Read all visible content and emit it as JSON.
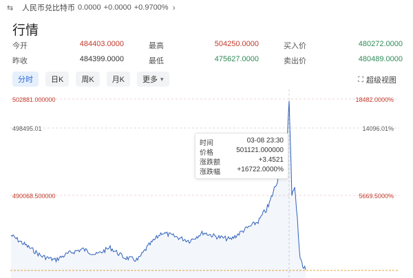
{
  "topbar": {
    "swap_icon": "swap-icon",
    "pair": "人民币兑比特币",
    "price": "0.0000",
    "change": "+0.0000",
    "change_pct": "+0.9700%",
    "chevron_icon": "chevron-right-icon"
  },
  "page": {
    "title": "行情"
  },
  "stats": {
    "row1": [
      {
        "label": "今开",
        "value": "484403.0000",
        "color": "#c0392b"
      },
      {
        "label": "最高",
        "value": "504250.0000",
        "color": "#c0392b"
      },
      {
        "label": "买入价",
        "value": "480272.0000",
        "color": "#2e8b57"
      }
    ],
    "row2": [
      {
        "label": "昨收",
        "value": "484399.0000",
        "color": "#333333"
      },
      {
        "label": "最低",
        "value": "475627.0000",
        "color": "#2e8b57"
      },
      {
        "label": "卖出价",
        "value": "480489.0000",
        "color": "#2e8b57"
      }
    ]
  },
  "tabs": [
    {
      "label": "分时",
      "active": true
    },
    {
      "label": "日K",
      "active": false
    },
    {
      "label": "周K",
      "active": false
    },
    {
      "label": "月K",
      "active": false
    },
    {
      "label": "更多",
      "active": false
    }
  ],
  "superview": {
    "label": "超级视图",
    "icon": "zoom-chart-icon"
  },
  "chart_labels": {
    "left_top": "502881.000000",
    "left_mid": "498495.01",
    "left_low": "490068.500000",
    "right_top": "18482.0000%",
    "right_mid": "14096.01%",
    "right_low": "5669.5000%"
  },
  "tooltip": {
    "time_label": "时间",
    "time_value": "03-08 23:30",
    "price_label": "价格",
    "price_value": "501121.000000",
    "amt_label": "涨跌额",
    "amt_value": "+3.4521",
    "pct_label": "涨跌幅",
    "pct_value": "+16722.0000%"
  },
  "colors": {
    "line": "#2e5fb8",
    "red": "#c0392b",
    "green": "#2e8b57",
    "accent": "#2d6bd6"
  }
}
